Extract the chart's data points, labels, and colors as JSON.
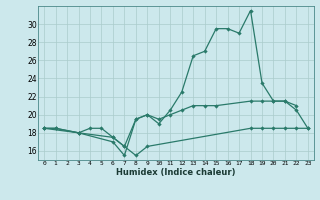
{
  "xlabel": "Humidex (Indice chaleur)",
  "series1_x": [
    0,
    1,
    3,
    6,
    7,
    8,
    9,
    18,
    19,
    20,
    21,
    22,
    23
  ],
  "series1_y": [
    18.5,
    18.5,
    18.0,
    17.5,
    16.5,
    15.5,
    16.5,
    18.5,
    18.5,
    18.5,
    18.5,
    18.5,
    18.5
  ],
  "series2_x": [
    0,
    1,
    3,
    4,
    5,
    6,
    7,
    8,
    9,
    10,
    11,
    12,
    13,
    14,
    15,
    18,
    19,
    20,
    21,
    22,
    23
  ],
  "series2_y": [
    18.5,
    18.5,
    18.0,
    18.5,
    18.5,
    17.5,
    16.5,
    19.5,
    20.0,
    19.5,
    20.0,
    20.5,
    21.0,
    21.0,
    21.0,
    21.5,
    21.5,
    21.5,
    21.5,
    20.5,
    18.5
  ],
  "series3_x": [
    0,
    3,
    6,
    7,
    8,
    9,
    10,
    11,
    12,
    13,
    14,
    15,
    16,
    17,
    18,
    19,
    20,
    21,
    22
  ],
  "series3_y": [
    18.5,
    18.0,
    17.0,
    15.5,
    19.5,
    20.0,
    19.0,
    20.5,
    22.5,
    26.5,
    27.0,
    29.5,
    29.5,
    29.0,
    31.5,
    23.5,
    21.5,
    21.5,
    21.0
  ],
  "color": "#2a7a6a",
  "bg_color": "#cce8ec",
  "grid_color": "#aacccc",
  "ylim": [
    15,
    32
  ],
  "xlim": [
    -0.5,
    23.5
  ],
  "yticks": [
    16,
    18,
    20,
    22,
    24,
    26,
    28,
    30
  ],
  "xticks": [
    0,
    1,
    2,
    3,
    4,
    5,
    6,
    7,
    8,
    9,
    10,
    11,
    12,
    13,
    14,
    15,
    16,
    17,
    18,
    19,
    20,
    21,
    22,
    23
  ]
}
